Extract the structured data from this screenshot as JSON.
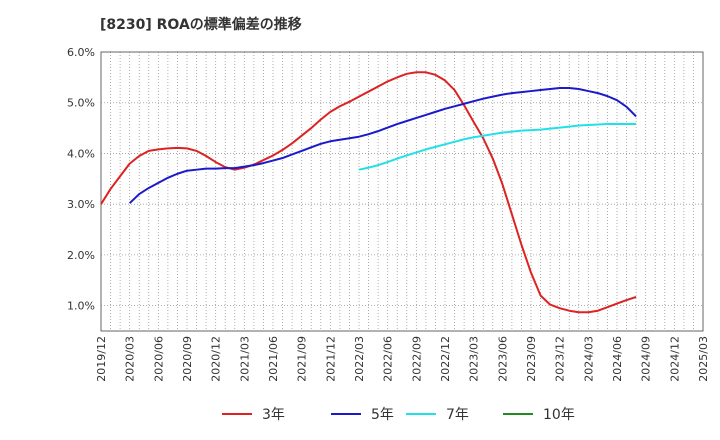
{
  "chart_title": "[8230]  ROAの標準偏差の推移",
  "chart_data": {
    "type": "line",
    "title": "[8230]  ROAの標準偏差の推移",
    "xlabel": "",
    "ylabel": "",
    "x_tick_labels": [
      "2019/12",
      "2020/03",
      "2020/06",
      "2020/09",
      "2020/12",
      "2021/03",
      "2021/06",
      "2021/09",
      "2021/12",
      "2022/03",
      "2022/06",
      "2022/09",
      "2022/12",
      "2023/03",
      "2023/06",
      "2023/09",
      "2023/12",
      "2024/03",
      "2024/06",
      "2024/09",
      "2024/12",
      "2025/03"
    ],
    "y_tick_labels": [
      "1.0%",
      "2.0%",
      "3.0%",
      "4.0%",
      "5.0%",
      "6.0%"
    ],
    "y_ticks": [
      1.0,
      2.0,
      3.0,
      4.0,
      5.0,
      6.0
    ],
    "ylim": [
      0.5,
      6.0
    ],
    "grid": true,
    "legend_position": "bottom",
    "series": [
      {
        "name": "3年",
        "color": "#dd2222",
        "points": [
          [
            "2019/12",
            3.0
          ],
          [
            "2020/01",
            3.3
          ],
          [
            "2020/02",
            3.55
          ],
          [
            "2020/03",
            3.8
          ],
          [
            "2020/04",
            3.95
          ],
          [
            "2020/05",
            4.05
          ],
          [
            "2020/06",
            4.08
          ],
          [
            "2020/07",
            4.1
          ],
          [
            "2020/08",
            4.11
          ],
          [
            "2020/09",
            4.1
          ],
          [
            "2020/10",
            4.05
          ],
          [
            "2020/11",
            3.95
          ],
          [
            "2020/12",
            3.83
          ],
          [
            "2021/01",
            3.73
          ],
          [
            "2021/02",
            3.68
          ],
          [
            "2021/03",
            3.72
          ],
          [
            "2021/04",
            3.78
          ],
          [
            "2021/05",
            3.87
          ],
          [
            "2021/06",
            3.96
          ],
          [
            "2021/07",
            4.07
          ],
          [
            "2021/08",
            4.2
          ],
          [
            "2021/09",
            4.35
          ],
          [
            "2021/10",
            4.5
          ],
          [
            "2021/11",
            4.67
          ],
          [
            "2021/12",
            4.82
          ],
          [
            "2022/01",
            4.93
          ],
          [
            "2022/02",
            5.02
          ],
          [
            "2022/03",
            5.12
          ],
          [
            "2022/04",
            5.22
          ],
          [
            "2022/05",
            5.32
          ],
          [
            "2022/06",
            5.42
          ],
          [
            "2022/07",
            5.5
          ],
          [
            "2022/08",
            5.57
          ],
          [
            "2022/09",
            5.6
          ],
          [
            "2022/10",
            5.6
          ],
          [
            "2022/11",
            5.55
          ],
          [
            "2022/12",
            5.44
          ],
          [
            "2023/01",
            5.25
          ],
          [
            "2023/02",
            4.95
          ],
          [
            "2023/03",
            4.62
          ],
          [
            "2023/04",
            4.3
          ],
          [
            "2023/05",
            3.9
          ],
          [
            "2023/06",
            3.4
          ],
          [
            "2023/07",
            2.8
          ],
          [
            "2023/08",
            2.2
          ],
          [
            "2023/09",
            1.65
          ],
          [
            "2023/10",
            1.2
          ],
          [
            "2023/11",
            1.02
          ],
          [
            "2023/12",
            0.95
          ],
          [
            "2024/01",
            0.9
          ],
          [
            "2024/02",
            0.87
          ],
          [
            "2024/03",
            0.87
          ],
          [
            "2024/04",
            0.9
          ],
          [
            "2024/05",
            0.97
          ],
          [
            "2024/06",
            1.04
          ],
          [
            "2024/07",
            1.11
          ],
          [
            "2024/08",
            1.17
          ]
        ]
      },
      {
        "name": "5年",
        "color": "#1a1acc",
        "points": [
          [
            "2020/03",
            3.02
          ],
          [
            "2020/04",
            3.2
          ],
          [
            "2020/05",
            3.32
          ],
          [
            "2020/06",
            3.42
          ],
          [
            "2020/07",
            3.52
          ],
          [
            "2020/08",
            3.6
          ],
          [
            "2020/09",
            3.66
          ],
          [
            "2020/10",
            3.68
          ],
          [
            "2020/11",
            3.7
          ],
          [
            "2020/12",
            3.7
          ],
          [
            "2021/01",
            3.71
          ],
          [
            "2021/02",
            3.71
          ],
          [
            "2021/03",
            3.74
          ],
          [
            "2021/04",
            3.77
          ],
          [
            "2021/05",
            3.81
          ],
          [
            "2021/06",
            3.86
          ],
          [
            "2021/07",
            3.91
          ],
          [
            "2021/08",
            3.98
          ],
          [
            "2021/09",
            4.05
          ],
          [
            "2021/10",
            4.12
          ],
          [
            "2021/11",
            4.19
          ],
          [
            "2021/12",
            4.24
          ],
          [
            "2022/01",
            4.27
          ],
          [
            "2022/02",
            4.3
          ],
          [
            "2022/03",
            4.33
          ],
          [
            "2022/04",
            4.38
          ],
          [
            "2022/05",
            4.44
          ],
          [
            "2022/06",
            4.51
          ],
          [
            "2022/07",
            4.58
          ],
          [
            "2022/08",
            4.64
          ],
          [
            "2022/09",
            4.7
          ],
          [
            "2022/10",
            4.76
          ],
          [
            "2022/11",
            4.82
          ],
          [
            "2022/12",
            4.88
          ],
          [
            "2023/01",
            4.93
          ],
          [
            "2023/02",
            4.98
          ],
          [
            "2023/03",
            5.03
          ],
          [
            "2023/04",
            5.08
          ],
          [
            "2023/05",
            5.12
          ],
          [
            "2023/06",
            5.16
          ],
          [
            "2023/07",
            5.19
          ],
          [
            "2023/08",
            5.21
          ],
          [
            "2023/09",
            5.23
          ],
          [
            "2023/10",
            5.25
          ],
          [
            "2023/11",
            5.27
          ],
          [
            "2023/12",
            5.29
          ],
          [
            "2024/01",
            5.29
          ],
          [
            "2024/02",
            5.27
          ],
          [
            "2024/03",
            5.23
          ],
          [
            "2024/04",
            5.19
          ],
          [
            "2024/05",
            5.13
          ],
          [
            "2024/06",
            5.05
          ],
          [
            "2024/07",
            4.92
          ],
          [
            "2024/08",
            4.73
          ]
        ]
      },
      {
        "name": "7年",
        "color": "#22e0e8",
        "points": [
          [
            "2022/03",
            3.68
          ],
          [
            "2022/04",
            3.72
          ],
          [
            "2022/05",
            3.77
          ],
          [
            "2022/06",
            3.83
          ],
          [
            "2022/07",
            3.9
          ],
          [
            "2022/08",
            3.96
          ],
          [
            "2022/09",
            4.02
          ],
          [
            "2022/10",
            4.08
          ],
          [
            "2022/11",
            4.13
          ],
          [
            "2022/12",
            4.18
          ],
          [
            "2023/01",
            4.23
          ],
          [
            "2023/02",
            4.28
          ],
          [
            "2023/03",
            4.32
          ],
          [
            "2023/04",
            4.35
          ],
          [
            "2023/05",
            4.38
          ],
          [
            "2023/06",
            4.41
          ],
          [
            "2023/07",
            4.43
          ],
          [
            "2023/08",
            4.45
          ],
          [
            "2023/09",
            4.46
          ],
          [
            "2023/10",
            4.47
          ],
          [
            "2023/11",
            4.49
          ],
          [
            "2023/12",
            4.51
          ],
          [
            "2024/01",
            4.53
          ],
          [
            "2024/02",
            4.55
          ],
          [
            "2024/03",
            4.56
          ],
          [
            "2024/04",
            4.57
          ],
          [
            "2024/05",
            4.58
          ],
          [
            "2024/06",
            4.58
          ],
          [
            "2024/07",
            4.58
          ],
          [
            "2024/08",
            4.58
          ]
        ]
      },
      {
        "name": "10年",
        "color": "#228b22",
        "points": []
      }
    ]
  }
}
